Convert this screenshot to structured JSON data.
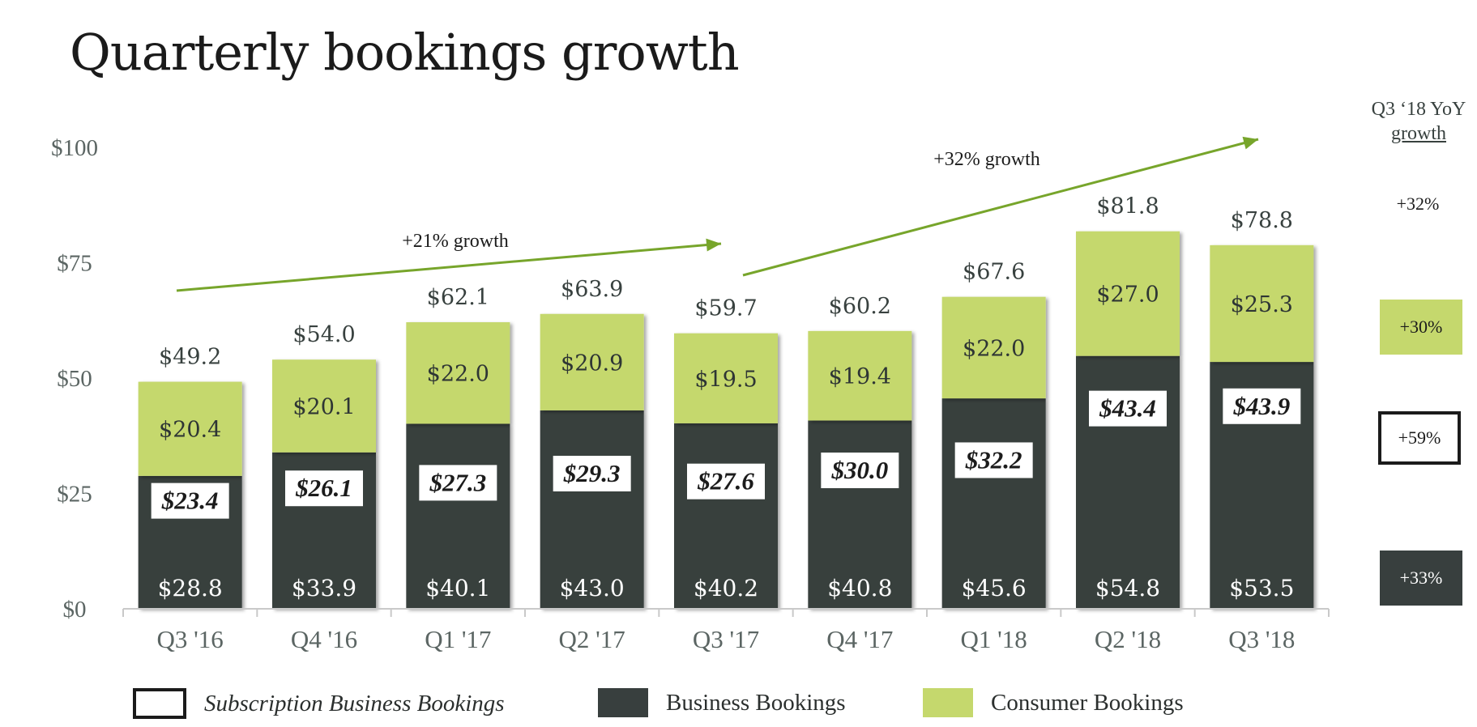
{
  "title": "Quarterly bookings growth",
  "chart_data": {
    "type": "bar",
    "stacked": true,
    "categories": [
      "Q3 '16",
      "Q4 '16",
      "Q1 '17",
      "Q2 '17",
      "Q3 '17",
      "Q4 '17",
      "Q1 '18",
      "Q2 '18",
      "Q3 '18"
    ],
    "y_ticks": [
      "$0",
      "$25",
      "$50",
      "$75",
      "$100"
    ],
    "y_tick_values": [
      0,
      25,
      50,
      75,
      100
    ],
    "ylim": [
      0,
      100
    ],
    "series": [
      {
        "name": "Business Bookings",
        "color": "#383f3e",
        "values": [
          28.8,
          33.9,
          40.1,
          43.0,
          40.2,
          40.8,
          45.6,
          54.8,
          53.5
        ],
        "labels": [
          "$28.8",
          "$33.9",
          "$40.1",
          "$43.0",
          "$40.2",
          "$40.8",
          "$45.6",
          "$54.8",
          "$53.5"
        ]
      },
      {
        "name": "Consumer Bookings",
        "color": "#c5d86d",
        "values": [
          20.4,
          20.1,
          22.0,
          20.9,
          19.5,
          19.4,
          22.0,
          27.0,
          25.3
        ],
        "labels": [
          "$20.4",
          "$20.1",
          "$22.0",
          "$20.9",
          "$19.5",
          "$19.4",
          "$22.0",
          "$27.0",
          "$25.3"
        ]
      }
    ],
    "subscription": {
      "name": "Subscription Business Bookings",
      "values": [
        23.4,
        26.1,
        27.3,
        29.3,
        27.6,
        30.0,
        32.2,
        43.4,
        43.9
      ],
      "labels": [
        "$23.4",
        "$26.1",
        "$27.3",
        "$29.3",
        "$27.6",
        "$30.0",
        "$32.2",
        "$43.4",
        "$43.9"
      ]
    },
    "totals": {
      "values": [
        49.2,
        54.0,
        62.1,
        63.9,
        59.7,
        60.2,
        67.6,
        81.8,
        78.8
      ],
      "labels": [
        "$49.2",
        "$54.0",
        "$62.1",
        "$63.9",
        "$59.7",
        "$60.2",
        "$67.6",
        "$81.8",
        "$78.8"
      ]
    },
    "annotations": [
      {
        "text": "+21% growth",
        "from": "Q3 '16",
        "to": "Q3 '17"
      },
      {
        "text": "+32% growth",
        "from": "Q3 '17",
        "to": "Q3 '18"
      }
    ],
    "legend_position": "bottom",
    "grid": false
  },
  "side_panel": {
    "heading_line1": "Q3 ‘18 YoY",
    "heading_line2": "growth",
    "total": "+32%",
    "consumer": "+30%",
    "subscription": "+59%",
    "business": "+33%"
  },
  "legend": {
    "subscription": "Subscription Business Bookings",
    "business": "Business Bookings",
    "consumer": "Consumer Bookings"
  },
  "colors": {
    "business": "#383f3e",
    "consumer": "#c5d86d",
    "arrow": "#77a52b"
  }
}
